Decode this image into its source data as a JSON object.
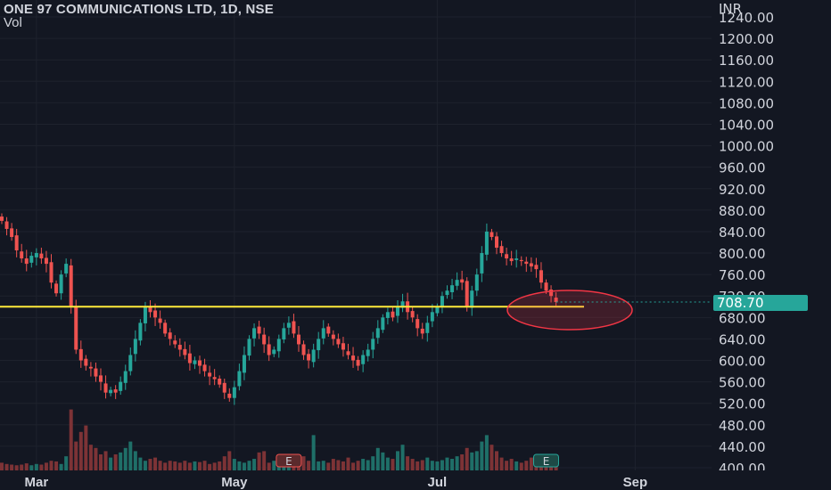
{
  "header": {
    "title": "ONE 97 COMMUNICATIONS LTD, 1D, NSE",
    "indicator": "Vol"
  },
  "chart_data": {
    "type": "candlestick",
    "currency": "INR",
    "ylim": [
      400,
      1240
    ],
    "y_ticks": [
      "1240.00",
      "1200.00",
      "1160.00",
      "1120.00",
      "1080.00",
      "1040.00",
      "1000.00",
      "960.00",
      "920.00",
      "880.00",
      "840.00",
      "800.00",
      "760.00",
      "720.00",
      "680.00",
      "640.00",
      "600.00",
      "560.00",
      "520.00",
      "480.00",
      "440.00",
      "400.00"
    ],
    "x_ticks": [
      {
        "label": "Mar",
        "index": 7
      },
      {
        "label": "May",
        "index": 47
      },
      {
        "label": "Jul",
        "index": 88
      },
      {
        "label": "Sep",
        "index": 128
      }
    ],
    "last_price": "708.70",
    "support_level": 700,
    "colors": {
      "up": "#26a69a",
      "down": "#ef5350",
      "up_vol": "#1f6f68",
      "down_vol": "#7d3336",
      "grid": "#1e222d",
      "support_line": "#ffeb3b",
      "price_tag": "#26a69a",
      "highlight": "#f23645"
    },
    "events": [
      {
        "label": "E",
        "index": 58,
        "type": "earnings"
      },
      {
        "label": "E",
        "index": 110,
        "type": "earnings"
      }
    ],
    "closes": [
      860,
      845,
      830,
      805,
      790,
      780,
      795,
      800,
      790,
      780,
      745,
      725,
      760,
      780,
      700,
      620,
      600,
      590,
      585,
      570,
      560,
      540,
      545,
      540,
      560,
      580,
      610,
      640,
      670,
      700,
      690,
      680,
      670,
      650,
      640,
      630,
      620,
      610,
      595,
      600,
      590,
      580,
      570,
      565,
      555,
      540,
      530,
      550,
      580,
      610,
      640,
      660,
      650,
      630,
      610,
      620,
      640,
      660,
      670,
      650,
      630,
      610,
      600,
      620,
      640,
      660,
      650,
      640,
      630,
      620,
      610,
      600,
      590,
      610,
      620,
      640,
      660,
      680,
      690,
      680,
      700,
      710,
      690,
      680,
      660,
      650,
      670,
      690,
      700,
      720,
      730,
      740,
      750,
      745,
      700,
      730,
      760,
      800,
      840,
      830,
      810,
      800,
      790,
      785,
      790,
      785,
      780,
      775,
      770,
      745,
      730,
      720,
      708.7
    ],
    "volume": [
      12,
      10,
      9,
      8,
      9,
      11,
      8,
      10,
      9,
      12,
      15,
      14,
      10,
      22,
      95,
      45,
      60,
      70,
      40,
      35,
      25,
      30,
      20,
      25,
      28,
      35,
      45,
      30,
      20,
      15,
      18,
      20,
      15,
      12,
      15,
      14,
      12,
      15,
      12,
      14,
      13,
      15,
      10,
      12,
      14,
      22,
      30,
      18,
      14,
      12,
      15,
      18,
      28,
      30,
      12,
      15,
      18,
      20,
      15,
      18,
      20,
      22,
      15,
      55,
      14,
      15,
      12,
      18,
      16,
      14,
      20,
      12,
      15,
      18,
      16,
      22,
      35,
      28,
      20,
      18,
      30,
      40,
      22,
      18,
      14,
      16,
      20,
      15,
      14,
      16,
      20,
      18,
      22,
      25,
      35,
      28,
      30,
      45,
      55,
      40,
      30,
      20,
      15,
      18,
      14,
      12,
      15,
      20,
      18,
      14,
      12,
      10,
      15
    ]
  }
}
